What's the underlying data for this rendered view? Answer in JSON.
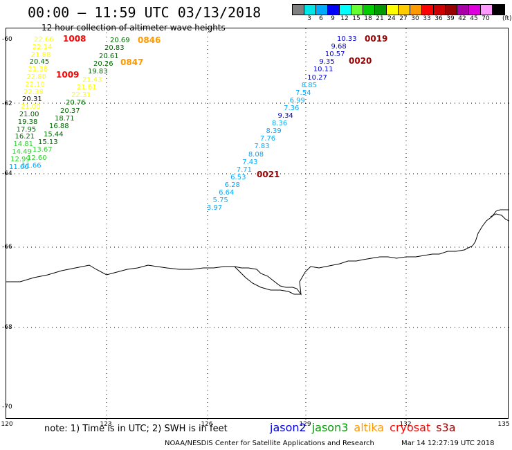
{
  "header": {
    "title": "00:00 – 11:59 UTC 03/13/2018",
    "subtitle": "12 hour collection of altimeter wave heights"
  },
  "colorbar": {
    "colors": [
      "#808080",
      "#00e6e6",
      "#00aaff",
      "#0000ff",
      "#00ffff",
      "#66ff33",
      "#00cc00",
      "#009900",
      "#ffff00",
      "#ffcc00",
      "#ff9900",
      "#ff0000",
      "#cc0000",
      "#990000",
      "#aa00aa",
      "#dd00dd",
      "#ff99ff",
      "#000000"
    ],
    "labels": [
      "3",
      "6",
      "9",
      "12",
      "15",
      "18",
      "21",
      "24",
      "27",
      "30",
      "33",
      "36",
      "39",
      "42",
      "45",
      "70"
    ],
    "unit": "(ft)"
  },
  "map": {
    "lat_labels": [
      "-60",
      "-62",
      "-64",
      "-66",
      "-68",
      "-70"
    ],
    "lon_labels": [
      "120",
      "123",
      "126",
      "129",
      "132",
      "135"
    ]
  },
  "tracks": {
    "left_values": [
      {
        "v": "22.66",
        "c": "#ffff00"
      },
      {
        "v": "22.14",
        "c": "#ffff00"
      },
      {
        "v": "21.88",
        "c": "#ffff00"
      },
      {
        "v": "20.45",
        "c": "#006600"
      },
      {
        "v": "21.38",
        "c": "#ffff00"
      },
      {
        "v": "22.80",
        "c": "#ffff00"
      },
      {
        "v": "22.10",
        "c": "#ffff00"
      },
      {
        "v": "22.38",
        "c": "#ffff00"
      },
      {
        "v": "20.31",
        "c": "#000000"
      },
      {
        "v": "21.00",
        "c": "#ffff00"
      },
      {
        "v": "21.00",
        "c": "#006600"
      },
      {
        "v": "19.38",
        "c": "#006600"
      },
      {
        "v": "17.95",
        "c": "#006600"
      },
      {
        "v": "16.21",
        "c": "#006600"
      },
      {
        "v": "14.81",
        "c": "#33cc33"
      },
      {
        "v": "14.49",
        "c": "#33cc33"
      },
      {
        "v": "12.99",
        "c": "#33cc33"
      },
      {
        "v": "11.66",
        "c": "#00aaff"
      }
    ],
    "mid_values": [
      {
        "v": "20.69",
        "c": "#006600"
      },
      {
        "v": "20.83",
        "c": "#006600"
      },
      {
        "v": "20.61",
        "c": "#006600"
      },
      {
        "v": "20.26",
        "c": "#006600"
      },
      {
        "v": "19.83",
        "c": "#006600"
      },
      {
        "v": "21.43",
        "c": "#ffff00"
      },
      {
        "v": "21.81",
        "c": "#ffff00"
      },
      {
        "v": "22.31",
        "c": "#ffff00"
      },
      {
        "v": "20.76",
        "c": "#006600"
      },
      {
        "v": "20.37",
        "c": "#006600"
      },
      {
        "v": "18.71",
        "c": "#006600"
      },
      {
        "v": "16.88",
        "c": "#006600"
      },
      {
        "v": "15.44",
        "c": "#006600"
      },
      {
        "v": "15.13",
        "c": "#006600"
      },
      {
        "v": "13.67",
        "c": "#33cc33"
      },
      {
        "v": "12.60",
        "c": "#33cc33"
      },
      {
        "v": "11.66",
        "c": "#00aaff"
      }
    ],
    "right_values": [
      {
        "v": "10.33",
        "c": "#0000cc"
      },
      {
        "v": "9.68",
        "c": "#0000cc"
      },
      {
        "v": "10.57",
        "c": "#0000cc"
      },
      {
        "v": "9.35",
        "c": "#0000cc"
      },
      {
        "v": "10.11",
        "c": "#0000cc"
      },
      {
        "v": "10.27",
        "c": "#0000cc"
      },
      {
        "v": "8.85",
        "c": "#00aaff"
      },
      {
        "v": "7.54",
        "c": "#00aaff"
      },
      {
        "v": "6.99",
        "c": "#00aaff"
      },
      {
        "v": "7.36",
        "c": "#00aaff"
      },
      {
        "v": "9.34",
        "c": "#0000cc"
      },
      {
        "v": "8.36",
        "c": "#00aaff"
      },
      {
        "v": "8.39",
        "c": "#00aaff"
      },
      {
        "v": "7.76",
        "c": "#00aaff"
      },
      {
        "v": "7.83",
        "c": "#00aaff"
      },
      {
        "v": "8.08",
        "c": "#00aaff"
      },
      {
        "v": "7.43",
        "c": "#00aaff"
      },
      {
        "v": "7.71",
        "c": "#00aaff"
      },
      {
        "v": "6.53",
        "c": "#00aaff"
      },
      {
        "v": "6.28",
        "c": "#00aaff"
      },
      {
        "v": "6.64",
        "c": "#00aaff"
      },
      {
        "v": "5.75",
        "c": "#00aaff"
      },
      {
        "v": "3.97",
        "c": "#00aaff"
      }
    ],
    "times": [
      {
        "t": "1008",
        "c": "#ff0000"
      },
      {
        "t": "1009",
        "c": "#ff0000"
      },
      {
        "t": "0846",
        "c": "#ff9900"
      },
      {
        "t": "0847",
        "c": "#ff9900"
      },
      {
        "t": "0019",
        "c": "#990000"
      },
      {
        "t": "0020",
        "c": "#990000"
      },
      {
        "t": "0021",
        "c": "#990000"
      }
    ]
  },
  "note": "note: 1) Time is in UTC; 2) SWH is in feet",
  "legend": [
    {
      "name": "jason2",
      "color": "#0000dd"
    },
    {
      "name": "jason3",
      "color": "#009900"
    },
    {
      "name": "altika",
      "color": "#ff9900"
    },
    {
      "name": "cryosat",
      "color": "#ff0000"
    },
    {
      "name": "s3a",
      "color": "#990000"
    }
  ],
  "footer": {
    "credit": "NOAA/NESDIS Center for Satellite Applications and Research",
    "timestamp": "Mar 14 12:27:19 UTC 2018"
  }
}
